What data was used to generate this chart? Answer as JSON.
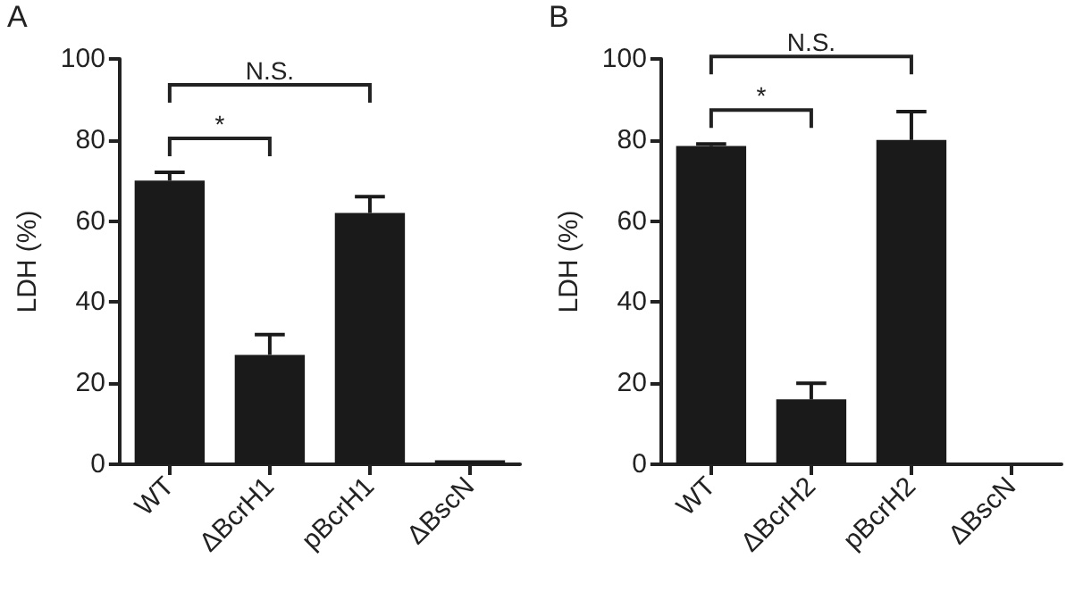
{
  "chart_data": [
    {
      "type": "bar",
      "title": "A",
      "ylabel": "LDH (%)",
      "categories": [
        "WT",
        "ΔBcrH1",
        "pBcrH1",
        "ΔBscN"
      ],
      "values": [
        70,
        27,
        62,
        1
      ],
      "errors": [
        2,
        5,
        4,
        null
      ],
      "color": "#1a1a1a",
      "ylim": [
        0,
        100
      ],
      "yticks": [
        0,
        20,
        40,
        60,
        80,
        100
      ],
      "grid": false,
      "annotations": [
        "*",
        "N.S."
      ]
    },
    {
      "type": "bar",
      "title": "B",
      "ylabel": "LDH (%)",
      "categories": [
        "WT",
        "ΔBcrH2",
        "pBcrH2",
        "ΔBscN"
      ],
      "values": [
        78.5,
        16,
        80,
        0
      ],
      "errors": [
        0.5,
        4,
        7,
        null
      ],
      "color": "#1a1a1a",
      "ylim": [
        0,
        100
      ],
      "yticks": [
        0,
        20,
        40,
        60,
        80,
        100
      ],
      "grid": false,
      "annotations": [
        "*",
        "N.S."
      ]
    }
  ]
}
